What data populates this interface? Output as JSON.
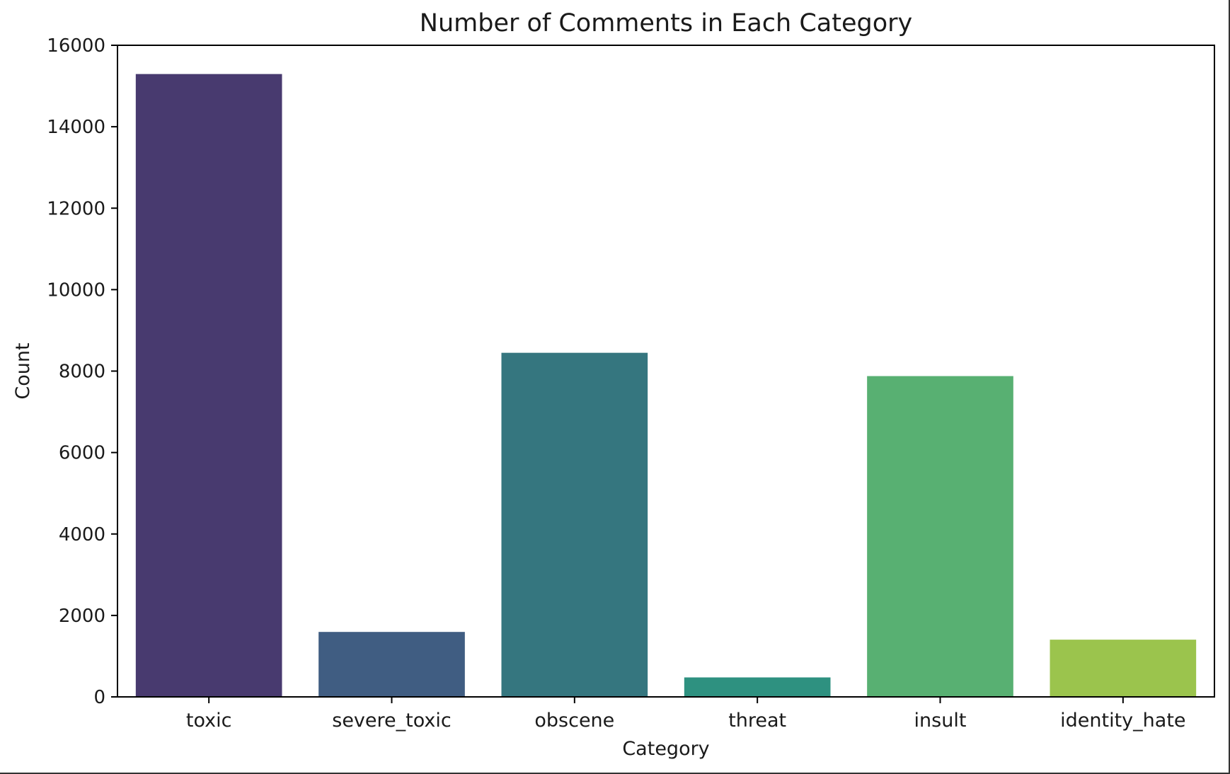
{
  "chart_data": {
    "type": "bar",
    "title": "Number of Comments in Each Category",
    "xlabel": "Category",
    "ylabel": "Count",
    "categories": [
      "toxic",
      "severe_toxic",
      "obscene",
      "threat",
      "insult",
      "identity_hate"
    ],
    "values": [
      15294,
      1595,
      8449,
      478,
      7877,
      1405
    ],
    "colors": [
      "#483a6f",
      "#405d82",
      "#35767f",
      "#2e9180",
      "#58b072",
      "#9bc44d"
    ],
    "ylim": [
      0,
      16000
    ],
    "yticks": [
      0,
      2000,
      4000,
      6000,
      8000,
      10000,
      12000,
      14000,
      16000
    ],
    "ytick_labels": [
      "0",
      "2000",
      "4000",
      "6000",
      "8000",
      "10000",
      "12000",
      "14000",
      "16000"
    ],
    "grid": false,
    "legend": "none"
  }
}
